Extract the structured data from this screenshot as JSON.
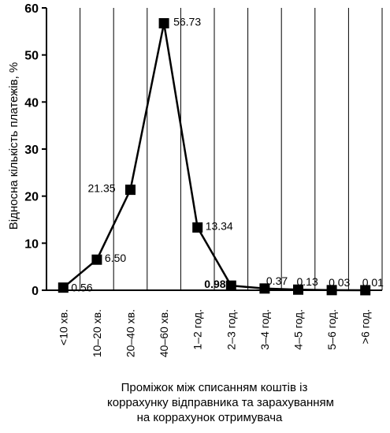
{
  "chart_data": {
    "type": "line",
    "categories": [
      "<10 хв.",
      "10–20 хв.",
      "20–40 хв.",
      "40–60 хв.",
      "1–2 год.",
      "2–3 год.",
      "3–4 год.",
      "4–5 год.",
      "5–6 год.",
      ">6 год."
    ],
    "values": [
      0.56,
      6.5,
      21.35,
      56.73,
      13.34,
      0.98,
      0.37,
      0.13,
      0.03,
      0.01
    ],
    "value_labels": [
      "0.56",
      "6.50",
      "21.35",
      "56.73",
      "13.34",
      "0.98",
      "0.37",
      "0.13",
      "0.03",
      "0.01"
    ],
    "ylabel": "Відносна кількість платежів, %",
    "xlabel_lines": [
      "Проміжок між списанням коштів із",
      "коррахунку відправника та зарахуванням",
      "на коррахунок отримувача"
    ],
    "ylim": [
      0,
      60
    ],
    "yticks": [
      0,
      10,
      20,
      30,
      40,
      50,
      60
    ],
    "grid": "vertical",
    "legend": "none",
    "line_color": "#000000"
  }
}
